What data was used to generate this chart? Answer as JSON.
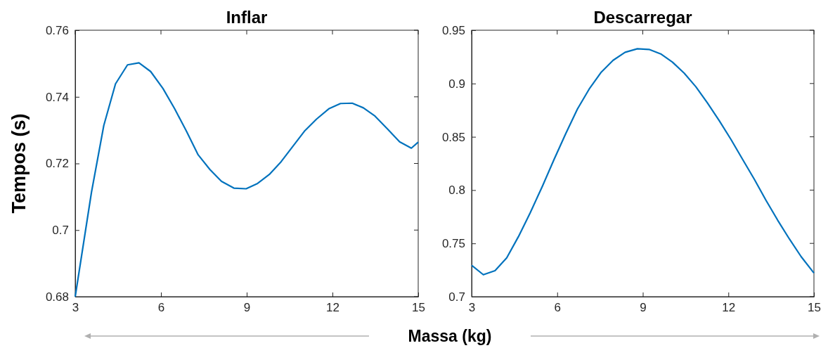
{
  "chart_data": [
    {
      "type": "line",
      "title": "Inflar",
      "ylabel": "Tempos (s)",
      "xlabel": "Massa (kg)",
      "xlim": [
        3,
        15
      ],
      "xticks": [
        3,
        6,
        9,
        12,
        15
      ],
      "ylim": [
        0.68,
        0.76
      ],
      "yticks": [
        0.68,
        0.7,
        0.72,
        0.74,
        0.76
      ],
      "grid": false,
      "marker": "none",
      "line_style": "solid",
      "series": [
        {
          "color": "#0072bd",
          "x": [
            3,
            3.57,
            4.0,
            4.41,
            4.83,
            5.23,
            5.64,
            6.07,
            6.48,
            6.89,
            7.3,
            7.71,
            8.12,
            8.55,
            8.98,
            9.38,
            9.79,
            10.2,
            10.61,
            11.02,
            11.44,
            11.87,
            12.28,
            12.69,
            13.08,
            13.49,
            13.92,
            14.35,
            14.76,
            15
          ],
          "values": [
            0.68,
            0.7114,
            0.7314,
            0.7439,
            0.7496,
            0.7502,
            0.7476,
            0.7425,
            0.7364,
            0.7297,
            0.7226,
            0.7182,
            0.7146,
            0.7126,
            0.7124,
            0.714,
            0.7167,
            0.7205,
            0.7251,
            0.7297,
            0.7333,
            0.7364,
            0.738,
            0.7381,
            0.7367,
            0.7342,
            0.7304,
            0.7265,
            0.7246,
            0.7264
          ]
        }
      ]
    },
    {
      "type": "line",
      "title": "Descarregar",
      "xlim": [
        3,
        15
      ],
      "xticks": [
        3,
        6,
        9,
        12,
        15
      ],
      "ylim": [
        0.7,
        0.95
      ],
      "yticks": [
        0.7,
        0.75,
        0.8,
        0.85,
        0.9,
        0.95
      ],
      "grid": false,
      "marker": "none",
      "line_style": "solid",
      "series": [
        {
          "color": "#0072bd",
          "x": [
            3,
            3.41,
            3.82,
            4.23,
            4.64,
            5.05,
            5.48,
            5.89,
            6.3,
            6.71,
            7.12,
            7.53,
            7.96,
            8.38,
            8.81,
            9.22,
            9.63,
            10.04,
            10.45,
            10.86,
            11.27,
            11.68,
            12.09,
            12.5,
            12.91,
            13.32,
            13.73,
            14.14,
            14.55,
            15
          ],
          "values": [
            0.7295,
            0.7206,
            0.7244,
            0.7365,
            0.7563,
            0.7785,
            0.8036,
            0.8288,
            0.853,
            0.8761,
            0.8948,
            0.9102,
            0.9218,
            0.9293,
            0.9326,
            0.932,
            0.9278,
            0.9201,
            0.9098,
            0.897,
            0.8816,
            0.8651,
            0.8476,
            0.8288,
            0.8102,
            0.7904,
            0.7717,
            0.7541,
            0.7376,
            0.7222
          ]
        }
      ]
    }
  ]
}
